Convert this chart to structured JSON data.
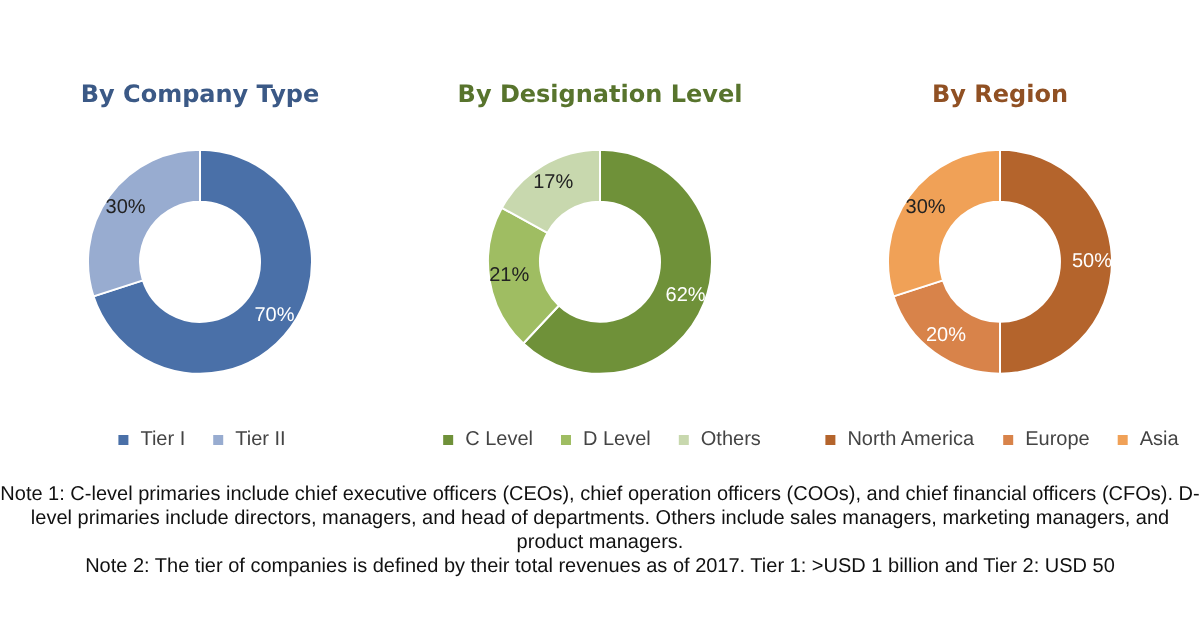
{
  "chart_data": [
    {
      "type": "donut",
      "title": "By Company Type",
      "categories": [
        "Tier I",
        "Tier II"
      ],
      "values": [
        70,
        30
      ],
      "value_labels": [
        "70%",
        "30%"
      ],
      "colors": [
        "#4a70a8",
        "#98acd0"
      ],
      "legend": "bottom"
    },
    {
      "type": "donut",
      "title": "By Designation Level",
      "categories": [
        "C Level",
        "D Level",
        "Others"
      ],
      "values": [
        62,
        21,
        17
      ],
      "value_labels": [
        "62%",
        "21%",
        "17%"
      ],
      "colors": [
        "#6f9139",
        "#9fbd62",
        "#c8d8ae"
      ],
      "legend": "bottom"
    },
    {
      "type": "donut",
      "title": "By Region",
      "categories": [
        "North America",
        "Europe",
        "Asia"
      ],
      "values": [
        50,
        20,
        30
      ],
      "value_labels": [
        "50%",
        "20%",
        "30%"
      ],
      "colors": [
        "#b4642c",
        "#d8834a",
        "#f0a157"
      ],
      "legend": "bottom",
      "annotations": [
        "Note 1: C-level primaries include chief executive officers (CEOs), chief operation officers (COOs), and chief financial officers (CFOs). D-level primaries include directors, managers, and head of departments. Others include sales managers, marketing managers, and product managers.",
        "Note 2: The tier of companies is defined by their total revenues as of 2017. Tier 1: >USD 1 billion and Tier 2: USD 50"
      ]
    }
  ]
}
